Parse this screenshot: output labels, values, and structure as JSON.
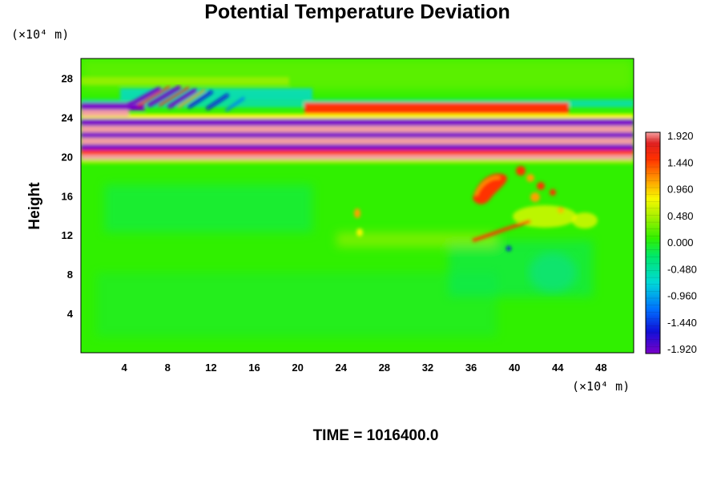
{
  "chart_data": {
    "type": "heatmap",
    "title": "Potential Temperature Deviation",
    "ylabel": "Height",
    "xlabel": "",
    "x_unit": "(×10⁴ m)",
    "y_unit": "(×10⁴ m)",
    "footer": "TIME = 1016400.0",
    "xlim": [
      0,
      51
    ],
    "ylim": [
      0,
      30
    ],
    "x_ticks": [
      4,
      8,
      12,
      16,
      20,
      24,
      28,
      32,
      36,
      40,
      44,
      48
    ],
    "y_ticks": [
      4,
      8,
      12,
      16,
      20,
      24,
      28
    ],
    "colorbar": {
      "labels": [
        "1.920",
        "1.440",
        "0.960",
        "0.480",
        "0.000",
        "-0.480",
        "-0.960",
        "-1.440",
        "-1.920"
      ],
      "values": [
        1.92,
        1.44,
        0.96,
        0.48,
        0.0,
        -0.48,
        -0.96,
        -1.44,
        -1.92
      ],
      "min": -1.92,
      "max": 1.92,
      "colors": [
        "#7a00c8",
        "#1010d8",
        "#0070ff",
        "#00d8d8",
        "#00e86a",
        "#30f000",
        "#a8f000",
        "#f8f800",
        "#ffa000",
        "#ff3000",
        "#e02020",
        "#f4a0a0"
      ]
    },
    "background_value": 0.0
  }
}
